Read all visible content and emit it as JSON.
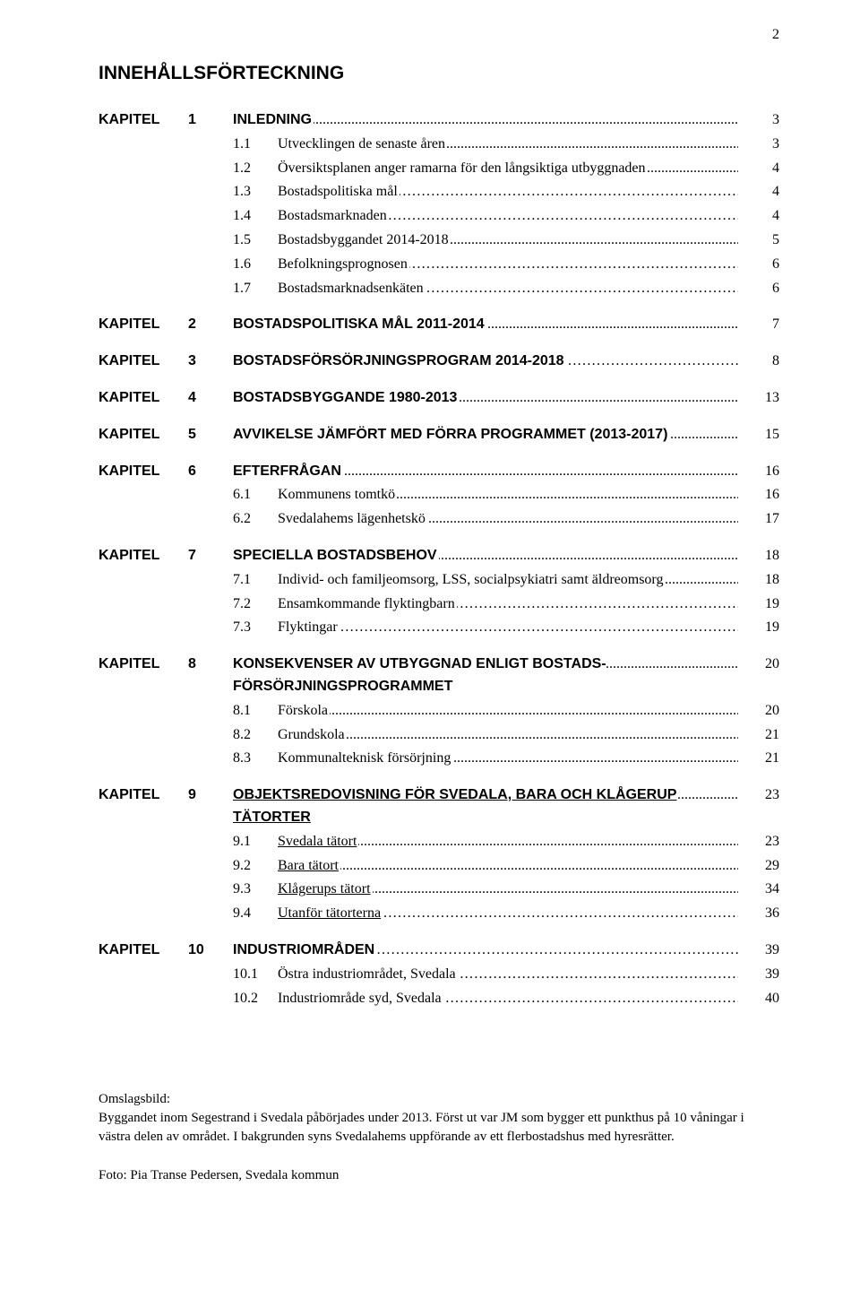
{
  "page_number_label": "2",
  "doc_title": "INNEHÅLLSFÖRTECKNING",
  "kapitel_label": "KAPITEL",
  "toc": [
    {
      "type": "chapter",
      "num": "1",
      "title": "INLEDNING",
      "leader": "dot",
      "page": "3"
    },
    {
      "type": "sub",
      "num": "1.1",
      "title": "Utvecklingen de senaste åren",
      "leader": "dot",
      "page": "3"
    },
    {
      "type": "sub",
      "num": "1.2",
      "title": "Översiktsplanen anger ramarna för den långsiktiga utbyggnaden",
      "leader": "dot",
      "page": "4"
    },
    {
      "type": "sub",
      "num": "1.3",
      "title": "Bostadspolitiska mål",
      "leader": "ellipsis",
      "page": "4"
    },
    {
      "type": "sub",
      "num": "1.4",
      "title": "Bostadsmarknaden",
      "leader": "ellipsis2",
      "page": "4"
    },
    {
      "type": "sub",
      "num": "1.5",
      "title": "Bostadsbyggandet 2014-2018",
      "leader": "dot",
      "page": "5"
    },
    {
      "type": "sub",
      "num": "1.6",
      "title": "Befolkningsprognosen",
      "leader": "ellipsis",
      "page": "6"
    },
    {
      "type": "sub",
      "num": "1.7",
      "title": "Bostadsmarknadsenkäten",
      "leader": "ellipsis",
      "page": "6"
    },
    {
      "type": "gap"
    },
    {
      "type": "chapter",
      "num": "2",
      "title": "BOSTADSPOLITISKA MÅL 2011-2014",
      "leader": "dot",
      "page": "7"
    },
    {
      "type": "gap"
    },
    {
      "type": "chapter",
      "num": "3",
      "title": "BOSTADSFÖRSÖRJNINGSPROGRAM 2014-2018",
      "leader": "ellipsis",
      "page": "8"
    },
    {
      "type": "gap"
    },
    {
      "type": "chapter",
      "num": "4",
      "title": "BOSTADSBYGGANDE 1980-2013",
      "leader": "dot",
      "page": "13"
    },
    {
      "type": "gap"
    },
    {
      "type": "chapter",
      "num": "5",
      "title": "AVVIKELSE JÄMFÖRT MED FÖRRA PROGRAMMET (2013-2017)",
      "multiline": true,
      "leader": "dot",
      "page": "15"
    },
    {
      "type": "gap"
    },
    {
      "type": "chapter",
      "num": "6",
      "title": "EFTERFRÅGAN",
      "leader": "dot",
      "page": "16"
    },
    {
      "type": "sub",
      "num": "6.1",
      "title": "Kommunens tomtkö",
      "leader": "dot",
      "page": "16"
    },
    {
      "type": "sub",
      "num": "6.2",
      "title": "Svedalahems lägenhetskö",
      "leader": "dot",
      "page": "17"
    },
    {
      "type": "gap"
    },
    {
      "type": "chapter",
      "num": "7",
      "title": "SPECIELLA BOSTADSBEHOV",
      "leader": "dot",
      "page": "18"
    },
    {
      "type": "sub",
      "num": "7.1",
      "title": "Individ- och familjeomsorg, LSS, socialpsykiatri samt äldreomsorg",
      "multiline": true,
      "leader": "dot",
      "page": "18"
    },
    {
      "type": "sub",
      "num": "7.2",
      "title": "Ensamkommande flyktingbarn",
      "leader": "ellipsis",
      "page": "19"
    },
    {
      "type": "sub",
      "num": "7.3",
      "title": "Flyktingar",
      "leader": "ellipsis",
      "page": "19"
    },
    {
      "type": "gap"
    },
    {
      "type": "chapter",
      "num": "8",
      "title": "KONSEKVENSER AV UTBYGGNAD ENLIGT BOSTADS-FÖRSÖRJNINGSPROGRAMMET",
      "multiline": true,
      "leader": "dot",
      "page": "20"
    },
    {
      "type": "sub",
      "num": "8.1",
      "title": "Förskola",
      "leader": "dot",
      "page": "20"
    },
    {
      "type": "sub",
      "num": "8.2",
      "title": "Grundskola",
      "leader": "dot",
      "page": "21"
    },
    {
      "type": "sub",
      "num": "8.3",
      "title": "Kommunalteknisk försörjning",
      "leader": "dot",
      "page": "21"
    },
    {
      "type": "gap"
    },
    {
      "type": "chapter",
      "num": "9",
      "title": "OBJEKTSREDOVISNING FÖR SVEDALA, BARA OCH KLÅGERUP TÄTORTER",
      "underline": true,
      "multiline": true,
      "leader": "dot",
      "page": "23"
    },
    {
      "type": "sub",
      "num": "9.1",
      "title": "Svedala tätort",
      "underline": true,
      "leader": "dot",
      "page": "23"
    },
    {
      "type": "sub",
      "num": "9.2",
      "title": "Bara tätort",
      "underline": true,
      "leader": "dot",
      "page": "29"
    },
    {
      "type": "sub",
      "num": "9.3",
      "title": "Klågerups tätort",
      "underline": true,
      "leader": "dot",
      "page": "34"
    },
    {
      "type": "sub",
      "num": "9.4",
      "title": "Utanför tätorterna",
      "underline": true,
      "leader": "ellipsis",
      "page": "36"
    },
    {
      "type": "gap"
    },
    {
      "type": "chapter",
      "num": "10",
      "title": "INDUSTRIOMRÅDEN",
      "leader": "ellipsis2",
      "page": "39"
    },
    {
      "type": "sub",
      "num": "10.1",
      "title": "Östra industriområdet, Svedala",
      "leader": "ellipsis",
      "page": "39"
    },
    {
      "type": "sub",
      "num": "10.2",
      "title": "Industriområde syd, Svedala",
      "leader": "ellipsis",
      "page": "40"
    }
  ],
  "footer": {
    "label": "Omslagsbild:",
    "text": "Byggandet inom Segestrand i Svedala påbörjades under 2013. Först ut var JM som bygger ett punkthus på 10 våningar i västra delen av området. I bakgrunden syns Svedalahems uppförande av ett flerbostadshus med hyresrätter.",
    "caption": "Foto: Pia Transe Pedersen, Svedala kommun"
  },
  "leaders": {
    "dot": "....................................................................................................................................................................................................",
    "ellipsis": "………………………………………………………………………………………………………………………………",
    "ellipsis2": "……………………………………………………………………………………………………………………….."
  }
}
